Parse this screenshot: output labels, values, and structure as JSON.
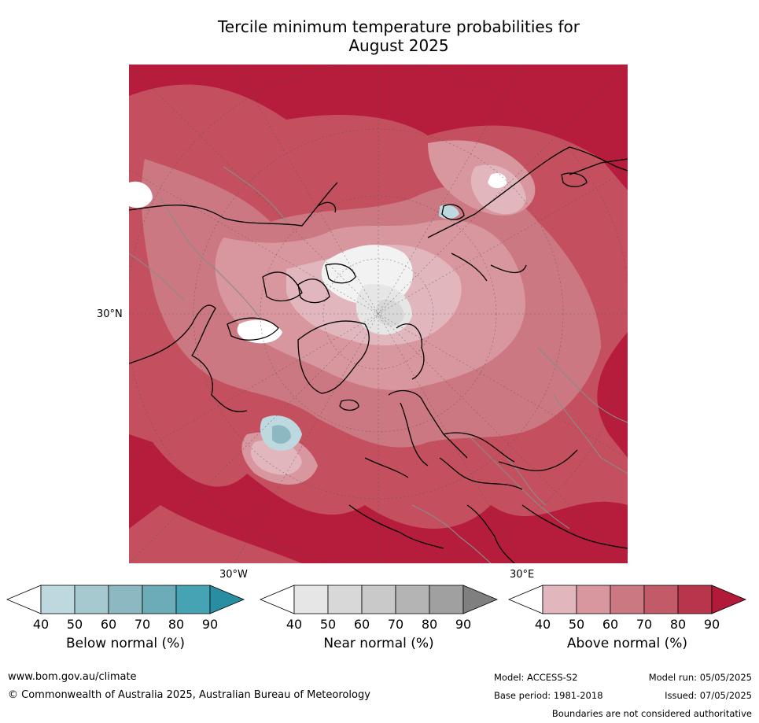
{
  "title_line1": "Tercile minimum temperature probabilities for",
  "title_line2": "August 2025",
  "map_labels": {
    "lat_30n": "30°N",
    "lon_30w": "30°W",
    "lon_30e": "30°E"
  },
  "colorbars": [
    {
      "caption": "Below normal (%)",
      "ticks": [
        "40",
        "50",
        "60",
        "70",
        "80",
        "90"
      ],
      "colors": [
        "#ffffff",
        "#bdd8de",
        "#a6c9cf",
        "#8cb8c2",
        "#6bacb8",
        "#45a3b3",
        "#2a8ea3"
      ]
    },
    {
      "caption": "Near normal (%)",
      "ticks": [
        "40",
        "50",
        "60",
        "70",
        "80",
        "90"
      ],
      "colors": [
        "#ffffff",
        "#e6e6e6",
        "#d8d8d8",
        "#c9c9c9",
        "#b4b4b4",
        "#a0a0a0",
        "#7f7f7f"
      ]
    },
    {
      "caption": "Above normal (%)",
      "ticks": [
        "40",
        "50",
        "60",
        "70",
        "80",
        "90"
      ],
      "colors": [
        "#ffffff",
        "#e2b6bd",
        "#d8969f",
        "#cc7882",
        "#c25a68",
        "#b8354c",
        "#b21a3a"
      ]
    }
  ],
  "footer": {
    "url": "www.bom.gov.au/climate",
    "copyright": "© Commonwealth of Australia 2025, Australian Bureau of Meteorology",
    "model": "Model: ACCESS-S2",
    "model_run": "Model run: 05/05/2025",
    "base_period": "Base period: 1981-2018",
    "issued": "Issued: 07/05/2025",
    "boundaries": "Boundaries are not considered authoritative"
  }
}
